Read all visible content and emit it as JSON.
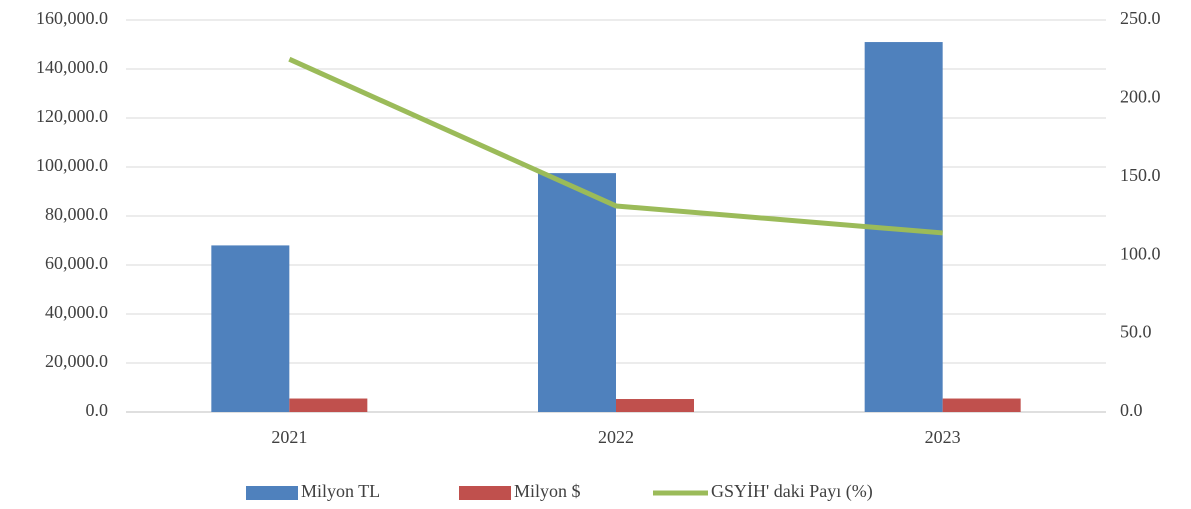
{
  "chart_data": {
    "type": "bar",
    "categories": [
      "2021",
      "2022",
      "2023"
    ],
    "series": [
      {
        "name": "Milyon TL",
        "color": "#4f81bd",
        "type": "bar",
        "values": [
          68000,
          97500,
          151000
        ]
      },
      {
        "name": "Milyon $",
        "color": "#c0504d",
        "type": "bar",
        "values": [
          5500,
          5300,
          5500
        ]
      },
      {
        "name": "GSYİH' daki Payı (%)",
        "color": "#9bbb59",
        "type": "line",
        "axis": "y2",
        "values": [
          225,
          131.4,
          114.2
        ]
      }
    ],
    "ylim": [
      0,
      160000
    ],
    "yticks": [
      {
        "value": 0,
        "label": "0.0"
      },
      {
        "value": 20000,
        "label": "20,000.0"
      },
      {
        "value": 40000,
        "label": "40,000.0"
      },
      {
        "value": 60000,
        "label": "60,000.0"
      },
      {
        "value": 80000,
        "label": "80,000.0"
      },
      {
        "value": 100000,
        "label": "100,000.0"
      },
      {
        "value": 120000,
        "label": "120,000.0"
      },
      {
        "value": 140000,
        "label": "140,000.0"
      },
      {
        "value": 160000,
        "label": "160,000.0"
      }
    ],
    "y2lim": [
      0,
      250
    ],
    "y2ticks": [
      {
        "value": 0,
        "label": "0.0"
      },
      {
        "value": 50,
        "label": "50.0"
      },
      {
        "value": 100,
        "label": "100.0"
      },
      {
        "value": 150,
        "label": "150.0"
      },
      {
        "value": 200,
        "label": "200.0"
      },
      {
        "value": 250,
        "label": "250.0"
      }
    ],
    "grid": true,
    "legend": "bottom"
  }
}
